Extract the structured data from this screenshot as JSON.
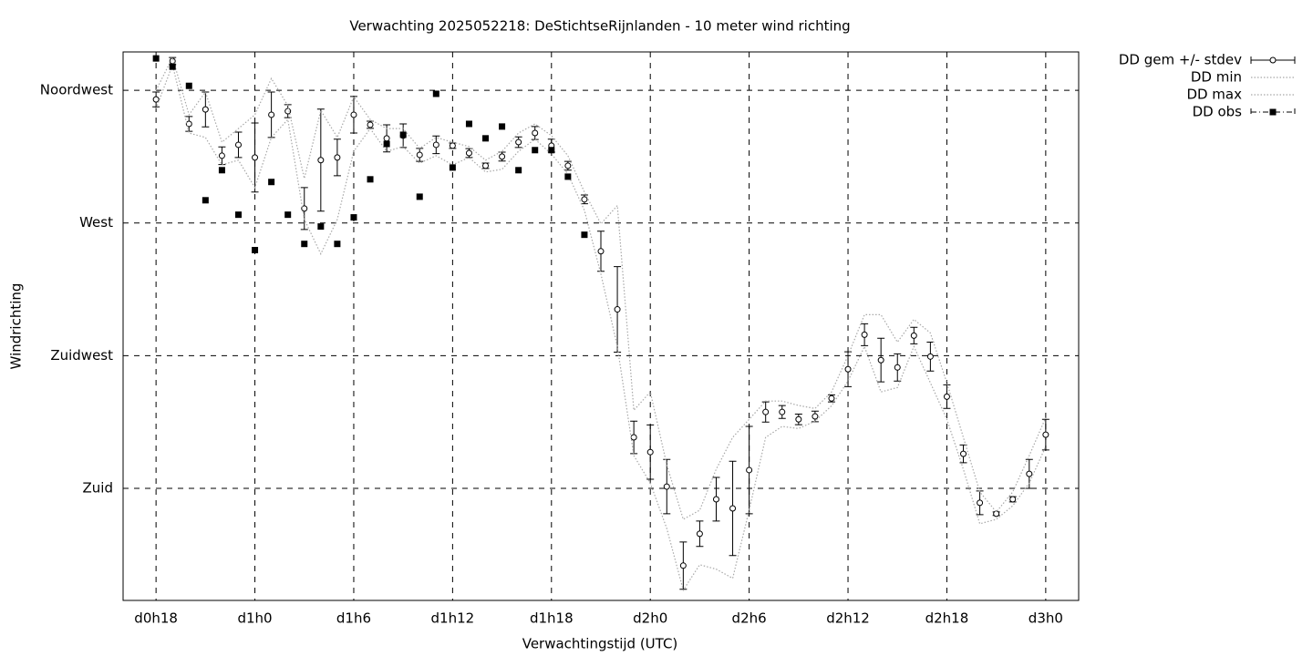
{
  "chart_data": {
    "type": "errorbar-line",
    "title": "Verwachting 2025052218: DeStichtseRijnlanden - 10 meter wind richting",
    "x_label": "Verwachtingstijd (UTC)",
    "y_label": "Windrichting",
    "x": [
      18,
      19,
      20,
      21,
      22,
      23,
      24,
      25,
      26,
      27,
      28,
      29,
      30,
      31,
      32,
      33,
      34,
      35,
      36,
      37,
      38,
      39,
      40,
      41,
      42,
      43,
      44,
      45,
      46,
      47,
      48,
      49,
      50,
      51,
      52,
      53,
      54,
      55,
      56,
      57,
      58,
      59,
      60,
      61,
      62,
      63,
      64,
      65,
      66,
      67,
      68,
      69,
      70,
      71,
      72
    ],
    "xlim": [
      16,
      74
    ],
    "xticks": [
      {
        "value": 18,
        "label": "d0h18"
      },
      {
        "value": 24,
        "label": "d1h0"
      },
      {
        "value": 30,
        "label": "d1h6"
      },
      {
        "value": 36,
        "label": "d1h12"
      },
      {
        "value": 42,
        "label": "d1h18"
      },
      {
        "value": 48,
        "label": "d2h0"
      },
      {
        "value": 54,
        "label": "d2h6"
      },
      {
        "value": 60,
        "label": "d2h12"
      },
      {
        "value": 66,
        "label": "d2h18"
      },
      {
        "value": 72,
        "label": "d3h0"
      }
    ],
    "ylim": [
      142,
      328
    ],
    "yticks": [
      {
        "value": 180,
        "label": "Zuid"
      },
      {
        "value": 225,
        "label": "Zuidwest"
      },
      {
        "value": 270,
        "label": "West"
      },
      {
        "value": 315,
        "label": "Noordwest"
      }
    ],
    "grid": true,
    "legend": "outside-top-right",
    "series": [
      {
        "name": "DD gem +/- stdev",
        "style": "errorbars",
        "color": "#000000",
        "values": [
          311.9,
          324.9,
          303.6,
          308.5,
          292.8,
          296.5,
          292.2,
          306.7,
          307.9,
          274.9,
          291.3,
          292.2,
          306.7,
          303.3,
          298.7,
          299.6,
          293.1,
          296.5,
          296.2,
          293.7,
          289.4,
          292.5,
          297.4,
          300.5,
          296.2,
          289.4,
          278.0,
          260.4,
          240.7,
          197.3,
          192.3,
          180.6,
          153.8,
          164.6,
          176.3,
          173.2,
          186.2,
          205.9,
          205.9,
          203.4,
          204.4,
          210.5,
          220.4,
          232.1,
          223.5,
          221.0,
          231.8,
          224.7,
          211.1,
          191.7,
          175.1,
          171.4,
          176.3,
          184.9,
          198.2
        ],
        "errors": [
          2.5,
          1.2,
          2.5,
          5.9,
          3,
          4.3,
          11.7,
          7.7,
          2.2,
          7.1,
          17.3,
          6.2,
          6.2,
          1.2,
          4.6,
          4,
          2.2,
          3,
          0.9,
          1.5,
          0.9,
          1.5,
          1.8,
          2.2,
          2.2,
          1.5,
          1.5,
          6.8,
          14.5,
          5.5,
          9.2,
          9.2,
          8,
          4.3,
          7.4,
          16,
          14.8,
          3.4,
          2.2,
          1.8,
          1.8,
          1.2,
          5.9,
          3.7,
          7.4,
          4.6,
          2.8,
          4.9,
          4,
          3,
          4,
          0.6,
          0.9,
          4.9,
          5.2
        ]
      },
      {
        "name": "DD min",
        "style": "dotted",
        "color": "#a8a8a8",
        "values": [
          308.8,
          323.6,
          300.5,
          299.0,
          289.7,
          291.3,
          282.0,
          299.0,
          305.1,
          271.2,
          259.5,
          271.2,
          294.3,
          302.0,
          294.3,
          295.9,
          290.3,
          292.8,
          289.7,
          292.2,
          287.3,
          288.2,
          294.3,
          298.4,
          293.4,
          286.6,
          274.3,
          252.7,
          228.1,
          191.1,
          181.8,
          166.4,
          145.5,
          154.1,
          152.6,
          149.5,
          172.6,
          197.3,
          201.0,
          200.3,
          202.8,
          208.0,
          216.4,
          228.1,
          212.7,
          214.2,
          228.1,
          215.8,
          203.4,
          186.5,
          168.0,
          169.5,
          174.1,
          181.8,
          194.2
        ]
      },
      {
        "name": "DD max",
        "style": "dotted",
        "color": "#a8a8a8",
        "values": [
          315.0,
          326.1,
          306.7,
          314.4,
          297.4,
          302.0,
          306.7,
          319.0,
          309.8,
          285.1,
          308.2,
          299.0,
          312.8,
          305.1,
          302.0,
          302.0,
          295.3,
          299.0,
          297.4,
          295.9,
          291.3,
          294.3,
          300.5,
          303.6,
          299.6,
          292.8,
          280.5,
          269.7,
          275.9,
          206.5,
          212.7,
          188.0,
          169.5,
          172.6,
          186.5,
          197.3,
          203.4,
          209.6,
          209.6,
          208.1,
          207.1,
          212.7,
          225.0,
          238.9,
          238.9,
          229.6,
          237.3,
          232.7,
          215.8,
          197.3,
          178.8,
          172.0,
          178.8,
          191.1,
          204.0
        ]
      },
      {
        "name": "DD obs",
        "style": "points",
        "color": "#000000",
        "values": [
          325.8,
          323.0,
          316.5,
          277.7,
          287.9,
          272.8,
          260.8,
          283.9,
          272.8,
          262.9,
          268.8,
          262.9,
          271.9,
          284.8,
          296.8,
          299.9,
          278.9,
          313.8,
          288.8,
          303.6,
          298.7,
          302.7,
          287.9,
          294.7,
          294.7,
          285.7,
          266.0,
          null,
          null,
          null,
          null,
          null,
          null,
          null,
          null,
          null,
          null,
          null,
          null,
          null,
          null,
          null,
          null,
          null,
          null,
          null,
          null,
          null,
          null,
          null,
          null,
          null,
          null,
          null,
          null
        ]
      }
    ]
  }
}
